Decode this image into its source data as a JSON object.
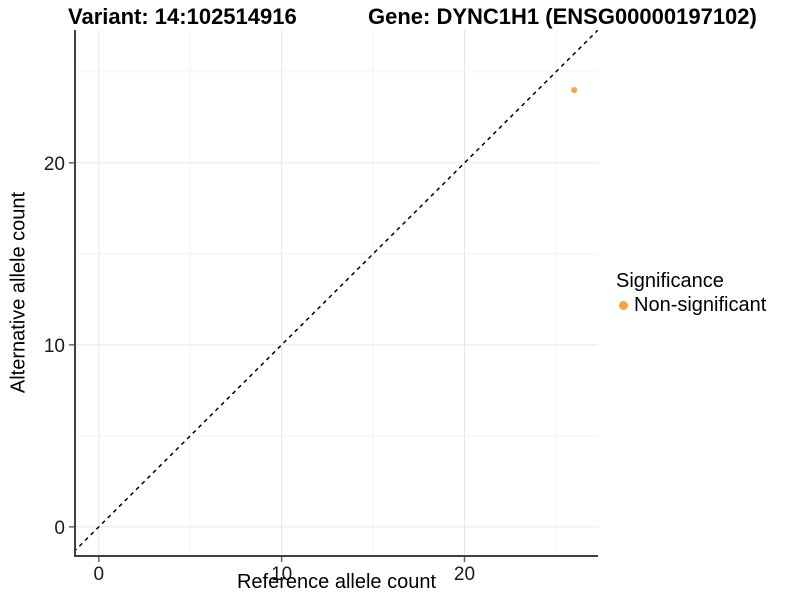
{
  "titles": {
    "left": "Variant: 14:102514916",
    "right": "Gene: DYNC1H1 (ENSG00000197102)"
  },
  "axes": {
    "x": {
      "label": "Reference allele count"
    },
    "y": {
      "label": "Alternative allele count"
    }
  },
  "legend": {
    "title": "Significance",
    "position": "right",
    "items": [
      {
        "label": "Non-significant",
        "color": "#F8A33E"
      }
    ]
  },
  "colors": {
    "point": "#F8A33E",
    "axis_line": "#404040",
    "tick": "#666666",
    "tick_label": "#1a1a1a",
    "grid_major": "#e6e6e6",
    "grid_minor": "#f2f2f2",
    "reference_line": "#000000",
    "background": "#ffffff"
  },
  "chart_data": {
    "type": "scatter",
    "title": "Variant: 14:102514916   Gene: DYNC1H1 (ENSG00000197102)",
    "xlabel": "Reference allele count",
    "ylabel": "Alternative allele count",
    "xlim": [
      -1.3,
      27.3
    ],
    "ylim": [
      -1.6,
      27.3
    ],
    "x_ticks": [
      0,
      10,
      20
    ],
    "y_ticks": [
      0,
      10,
      20
    ],
    "x_minor_ticks": [
      5,
      15,
      25
    ],
    "y_minor_ticks": [
      5,
      15,
      25
    ],
    "grid": "major+minor",
    "legend_position": "right",
    "series": [
      {
        "name": "Non-significant",
        "color": "#F8A33E",
        "points": [
          {
            "x": 26,
            "y": 24
          }
        ]
      }
    ],
    "reference_line": {
      "type": "identity y=x",
      "style": "dashed",
      "color": "#000000"
    }
  }
}
